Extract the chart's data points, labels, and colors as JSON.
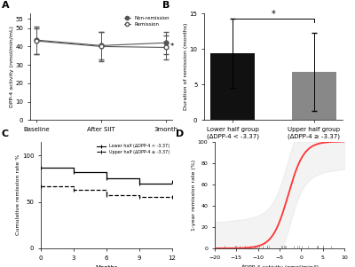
{
  "panel_A": {
    "x_labels": [
      "Baseline",
      "After SIIT",
      "3month"
    ],
    "non_remission_means": [
      43.5,
      40.5,
      42.0
    ],
    "non_remission_errors": [
      7.5,
      7.5,
      6.0
    ],
    "remission_means": [
      43.0,
      40.0,
      39.5
    ],
    "remission_errors": [
      7.0,
      8.0,
      6.5
    ],
    "ylabel": "DPP-4 activity (nmol/min/mL)",
    "ylim": [
      0,
      58
    ],
    "yticks": [
      0,
      10,
      20,
      30,
      40,
      50,
      55
    ],
    "title": "A",
    "legend_nonrem": "Non-remission",
    "legend_rem": "Remission"
  },
  "panel_B": {
    "categories": [
      "Lower half group\n(∆DPP-4 < -3.37)",
      "Upper half group\n(∆DPP-4 ≥ -3.37)"
    ],
    "values": [
      9.4,
      6.8
    ],
    "errors": [
      4.8,
      5.5
    ],
    "colors": [
      "#111111",
      "#888888"
    ],
    "ylabel": "Duration of remission (months)",
    "ylim": [
      0,
      15
    ],
    "yticks": [
      0,
      5,
      10,
      15
    ],
    "title": "B",
    "sig_star": "*"
  },
  "panel_C": {
    "title": "C",
    "ylabel": "Cumulative remission rate %",
    "xlabel": "Months",
    "yticks": [
      0,
      50,
      100
    ],
    "xticks": [
      0,
      3,
      6,
      9,
      12
    ],
    "lower_step_x": [
      0,
      3,
      6,
      9,
      12
    ],
    "lower_step_y": [
      87,
      82,
      75,
      70,
      72
    ],
    "upper_step_x": [
      0,
      3,
      6,
      9,
      12
    ],
    "upper_step_y": [
      67,
      63,
      57,
      55,
      55
    ],
    "legend_lower": "Lower half (∆DPP-4 < -3.37)",
    "legend_upper": "Upper half (∆DPP-4 ≥ -3.37)"
  },
  "panel_D": {
    "title": "D",
    "ylabel": "1-year remission rate (%)",
    "xlabel": "∆DPP-4 activity (nmol/min/l)",
    "xlim": [
      -20,
      10
    ],
    "ylim": [
      0,
      100
    ],
    "yticks": [
      0,
      20,
      40,
      60,
      80,
      100
    ],
    "xticks": [
      -20,
      -15,
      -10,
      -5,
      0,
      5,
      10
    ],
    "sigmoid_color": "#ff3333",
    "rug_color": "#666666",
    "sigmoid_k": 0.55,
    "sigmoid_x0": -3.0
  }
}
